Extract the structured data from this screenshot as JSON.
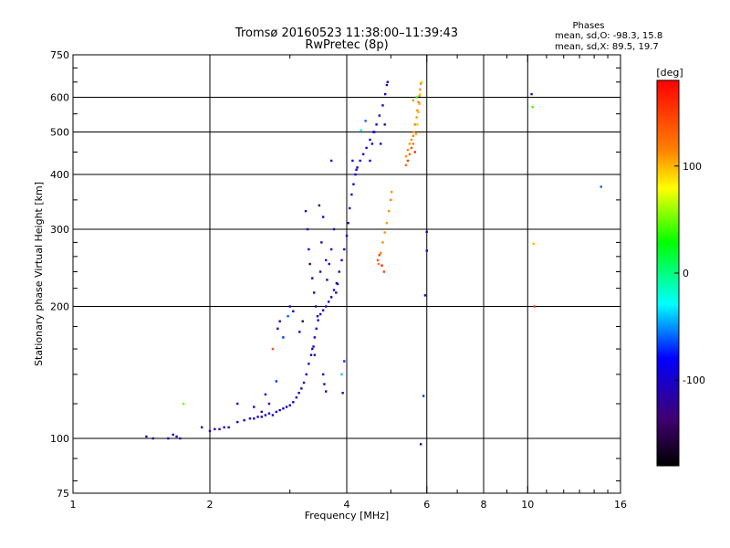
{
  "chart_data": {
    "type": "scatter",
    "title": "Tromsø 20160523 11:38:00–11:39:43",
    "subtitle": "RwPretec (8p)",
    "xlabel": "Frequency [MHz]",
    "ylabel": "Stationary phase Virtual Height [km]",
    "x_scale": "log",
    "y_scale": "log",
    "xlim": [
      1,
      16
    ],
    "ylim": [
      75,
      750
    ],
    "x_ticks": [
      1,
      2,
      4,
      6,
      8,
      10,
      16
    ],
    "x_tick_labels": [
      "1",
      "2",
      "4",
      "6",
      "8",
      "10",
      "16"
    ],
    "y_ticks": [
      75,
      100,
      200,
      300,
      400,
      500,
      600,
      750
    ],
    "y_tick_labels": [
      "75",
      "100",
      "200",
      "300",
      "400",
      "500",
      "600",
      "750"
    ],
    "x_gridlines": [
      2,
      4,
      6,
      8,
      10
    ],
    "y_gridlines": [
      100,
      200,
      300,
      400,
      500,
      600
    ],
    "grid": true,
    "stats": {
      "heading": "Phases",
      "line_o": "mean, sd,O: -98.3, 15.8",
      "line_x": "mean, sd,X:  89.5, 19.7"
    },
    "colorbar": {
      "label": "[deg]",
      "range": [
        -180,
        180
      ],
      "ticks": [
        100,
        0,
        -100
      ],
      "tick_labels": [
        "100",
        "0",
        "-100"
      ]
    },
    "series": [
      {
        "points": [
          [
            1.45,
            101,
            -110
          ],
          [
            1.5,
            100,
            -105
          ],
          [
            1.62,
            100,
            -100
          ],
          [
            1.66,
            102,
            -108
          ],
          [
            1.69,
            101,
            -95
          ],
          [
            1.72,
            100,
            -112
          ],
          [
            1.92,
            106,
            -100
          ],
          [
            2.0,
            104,
            -110
          ],
          [
            2.05,
            105,
            -98
          ],
          [
            2.1,
            105,
            -115
          ],
          [
            2.15,
            106,
            -102
          ],
          [
            2.2,
            106,
            -108
          ],
          [
            2.3,
            109,
            -95
          ],
          [
            2.38,
            110,
            -105
          ],
          [
            2.45,
            111,
            -100
          ],
          [
            2.5,
            111,
            -92
          ],
          [
            2.55,
            112,
            -110
          ],
          [
            2.6,
            112,
            -98
          ],
          [
            2.65,
            113,
            -104
          ],
          [
            2.7,
            114,
            -80
          ],
          [
            2.75,
            113,
            -100
          ],
          [
            2.8,
            115,
            -108
          ],
          [
            2.85,
            116,
            -96
          ],
          [
            2.9,
            117,
            -102
          ],
          [
            2.95,
            118,
            -110
          ],
          [
            3.0,
            119,
            -95
          ],
          [
            3.05,
            121,
            -100
          ],
          [
            3.1,
            124,
            -106
          ],
          [
            3.14,
            127,
            -98
          ],
          [
            3.18,
            130,
            -112
          ],
          [
            3.22,
            134,
            -104
          ],
          [
            3.26,
            140,
            -100
          ],
          [
            3.3,
            148,
            -110
          ],
          [
            3.34,
            155,
            -102
          ],
          [
            3.38,
            162,
            -108
          ],
          [
            3.4,
            170,
            -96
          ],
          [
            3.43,
            178,
            -104
          ],
          [
            3.46,
            186,
            -112
          ],
          [
            3.5,
            192,
            -100
          ],
          [
            3.55,
            196,
            -108
          ],
          [
            3.6,
            200,
            -98
          ],
          [
            3.65,
            205,
            -106
          ],
          [
            3.7,
            210,
            -102
          ],
          [
            3.75,
            218,
            -110
          ],
          [
            3.8,
            226,
            -100
          ],
          [
            3.85,
            240,
            -104
          ],
          [
            3.9,
            255,
            -98
          ],
          [
            3.95,
            270,
            -108
          ],
          [
            4.0,
            290,
            -100
          ],
          [
            4.03,
            310,
            -106
          ],
          [
            4.06,
            335,
            -98
          ],
          [
            4.1,
            360,
            -110
          ],
          [
            4.14,
            380,
            -102
          ],
          [
            4.18,
            400,
            -96
          ],
          [
            4.22,
            415,
            -108
          ],
          [
            4.28,
            430,
            -100
          ],
          [
            4.35,
            445,
            -104
          ],
          [
            4.42,
            460,
            -98
          ],
          [
            4.5,
            480,
            -110
          ],
          [
            4.58,
            500,
            -102
          ],
          [
            4.65,
            520,
            -96
          ],
          [
            4.72,
            545,
            -108
          ],
          [
            4.8,
            575,
            -100
          ],
          [
            4.86,
            610,
            -104
          ],
          [
            4.9,
            640,
            -98
          ],
          [
            4.92,
            650,
            -110
          ],
          [
            4.5,
            430,
            -100
          ],
          [
            4.55,
            470,
            -95
          ],
          [
            4.6,
            500,
            -105
          ],
          [
            4.75,
            470,
            -100
          ],
          [
            4.85,
            520,
            -110
          ],
          [
            4.4,
            530,
            -60
          ],
          [
            4.3,
            505,
            -30
          ],
          [
            4.2,
            410,
            -100
          ],
          [
            4.12,
            430,
            -98
          ],
          [
            3.25,
            330,
            -100
          ],
          [
            3.28,
            300,
            -105
          ],
          [
            3.3,
            270,
            -98
          ],
          [
            3.32,
            250,
            -140
          ],
          [
            3.36,
            232,
            -110
          ],
          [
            3.39,
            215,
            -104
          ],
          [
            3.42,
            200,
            -118
          ],
          [
            3.45,
            190,
            -100
          ],
          [
            3.5,
            240,
            -125
          ],
          [
            3.52,
            280,
            -110
          ],
          [
            3.55,
            320,
            -102
          ],
          [
            3.48,
            340,
            -140
          ],
          [
            3.6,
            255,
            -108
          ],
          [
            3.62,
            230,
            -115
          ],
          [
            3.66,
            250,
            -100
          ],
          [
            3.7,
            270,
            -110
          ],
          [
            3.75,
            300,
            -120
          ],
          [
            3.79,
            215,
            -106
          ],
          [
            3.82,
            225,
            -112
          ],
          [
            3.7,
            430,
            -100
          ],
          [
            3.55,
            140,
            -112
          ],
          [
            3.57,
            133,
            -100
          ],
          [
            3.6,
            128,
            -104
          ],
          [
            3.4,
            155,
            -130
          ],
          [
            3.36,
            160,
            -110
          ],
          [
            3.2,
            185,
            -150
          ],
          [
            3.15,
            175,
            -100
          ],
          [
            3.0,
            200,
            -110
          ],
          [
            3.05,
            195,
            -104
          ],
          [
            2.97,
            190,
            -60
          ],
          [
            2.85,
            185,
            -100
          ],
          [
            2.82,
            178,
            -108
          ],
          [
            2.9,
            170,
            -70
          ],
          [
            2.8,
            135,
            -70
          ],
          [
            2.7,
            120,
            -100
          ],
          [
            2.65,
            126,
            -80
          ],
          [
            2.6,
            115,
            -100
          ],
          [
            2.5,
            118,
            -95
          ],
          [
            2.3,
            120,
            -100
          ],
          [
            1.75,
            120,
            50
          ],
          [
            2.75,
            160,
            140
          ],
          [
            3.9,
            140,
            -40
          ],
          [
            3.92,
            127,
            -120
          ],
          [
            3.95,
            150,
            -70
          ],
          [
            4.7,
            250,
            120
          ],
          [
            4.75,
            265,
            115
          ],
          [
            4.8,
            280,
            112
          ],
          [
            4.85,
            295,
            110
          ],
          [
            4.9,
            310,
            108
          ],
          [
            4.95,
            330,
            112
          ],
          [
            5.0,
            350,
            115
          ],
          [
            5.02,
            365,
            110
          ],
          [
            4.68,
            255,
            140
          ],
          [
            4.72,
            262,
            150
          ],
          [
            4.78,
            248,
            160
          ],
          [
            4.83,
            240,
            145
          ],
          [
            5.4,
            440,
            110
          ],
          [
            5.45,
            455,
            115
          ],
          [
            5.5,
            470,
            108
          ],
          [
            5.55,
            480,
            112
          ],
          [
            5.6,
            490,
            118
          ],
          [
            5.62,
            500,
            110
          ],
          [
            5.65,
            520,
            115
          ],
          [
            5.7,
            540,
            108
          ],
          [
            5.72,
            560,
            112
          ],
          [
            5.75,
            585,
            120
          ],
          [
            5.78,
            605,
            115
          ],
          [
            5.8,
            625,
            110
          ],
          [
            5.82,
            645,
            118
          ],
          [
            5.68,
            495,
            105
          ],
          [
            5.6,
            470,
            120
          ],
          [
            5.55,
            460,
            140
          ],
          [
            5.5,
            445,
            130
          ],
          [
            5.45,
            430,
            150
          ],
          [
            5.4,
            420,
            125
          ],
          [
            5.72,
            520,
            95
          ],
          [
            5.75,
            555,
            100
          ],
          [
            5.78,
            580,
            105
          ],
          [
            5.8,
            610,
            90
          ],
          [
            5.85,
            650,
            60
          ],
          [
            5.65,
            450,
            160
          ],
          [
            5.7,
            600,
            30
          ],
          [
            5.6,
            590,
            110
          ],
          [
            6.0,
            296,
            -110
          ],
          [
            6.0,
            268,
            -100
          ],
          [
            5.95,
            212,
            -105
          ],
          [
            5.9,
            125,
            -70
          ],
          [
            5.82,
            97,
            -120
          ],
          [
            10.2,
            610,
            -120
          ],
          [
            10.25,
            570,
            40
          ],
          [
            10.3,
            278,
            100
          ],
          [
            10.35,
            200,
            150
          ],
          [
            14.5,
            375,
            -60
          ]
        ]
      }
    ]
  }
}
